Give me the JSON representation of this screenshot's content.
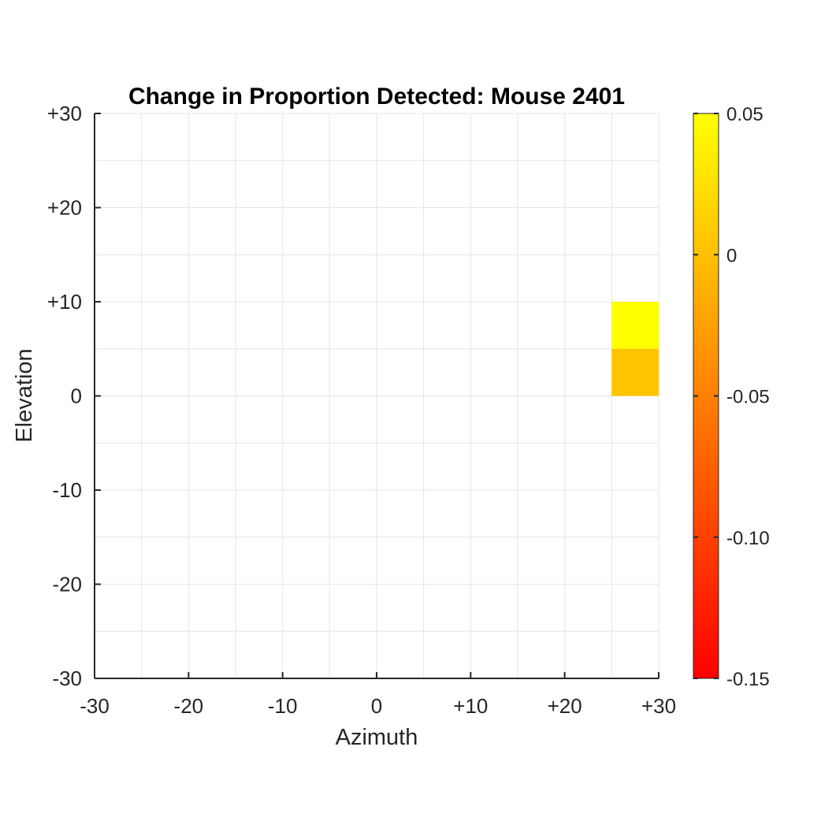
{
  "chart_data": {
    "type": "heatmap",
    "title": "Change in Proportion Detected: Mouse 2401",
    "xlabel": "Azimuth",
    "ylabel": "Elevation",
    "xlim": [
      -30,
      30
    ],
    "ylim": [
      -30,
      30
    ],
    "xticks": [
      -30,
      -20,
      -10,
      0,
      10,
      20,
      30
    ],
    "xtick_labels": [
      "-30",
      "-20",
      "-10",
      "0",
      "+10",
      "+20",
      "+30"
    ],
    "yticks": [
      -30,
      -20,
      -10,
      0,
      10,
      20,
      30
    ],
    "ytick_labels": [
      "-30",
      "-20",
      "-10",
      "0",
      "+10",
      "+20",
      "+30"
    ],
    "grid_step": 5,
    "grid": true,
    "cells": [
      {
        "x0": 25,
        "x1": 30,
        "y0": 5,
        "y1": 10,
        "value": 0.05
      },
      {
        "x0": 25,
        "x1": 30,
        "y0": 0,
        "y1": 5,
        "value": 0.003
      }
    ],
    "colorbar": {
      "min": -0.15,
      "max": 0.05,
      "ticks": [
        0.05,
        0,
        -0.05,
        -0.1,
        -0.15
      ],
      "tick_labels": [
        "0.05",
        "0",
        "-0.05",
        "-0.10",
        "-0.15"
      ],
      "colormap": "autumn",
      "color_low": "#ff0000",
      "color_high": "#ffff00",
      "placement": "right"
    }
  }
}
